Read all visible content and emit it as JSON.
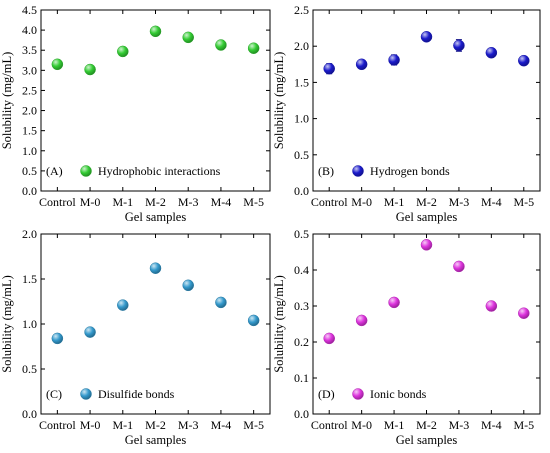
{
  "chart_data": [
    {
      "type": "scatter",
      "panel": "(A)",
      "xlabel": "Gel samples",
      "ylabel": "Solubility (mg/mL)",
      "categories": [
        "Control",
        "M-0",
        "M-1",
        "M-2",
        "M-3",
        "M-4",
        "M-5"
      ],
      "ylim": [
        0,
        4.5
      ],
      "yticks": [
        "0.0",
        "0.5",
        "1.0",
        "1.5",
        "2.0",
        "2.5",
        "3.0",
        "3.5",
        "4.0",
        "4.5"
      ],
      "legend_placement": "bottom-left",
      "series": [
        {
          "name": "Hydrophobic interactions",
          "color": "#33cc33",
          "values": [
            3.15,
            3.02,
            3.47,
            3.97,
            3.82,
            3.63,
            3.55
          ],
          "errors": [
            0.04,
            0.05,
            0.05,
            0.05,
            0.04,
            0.04,
            0.04
          ]
        }
      ]
    },
    {
      "type": "scatter",
      "panel": "(B)",
      "xlabel": "Gel samples",
      "ylabel": "Solubility (mg/mL)",
      "categories": [
        "Control",
        "M-0",
        "M-1",
        "M-2",
        "M-3",
        "M-4",
        "M-5"
      ],
      "ylim": [
        0,
        2.5
      ],
      "yticks": [
        "0.0",
        "0.5",
        "1.0",
        "1.5",
        "2.0",
        "2.5"
      ],
      "legend_placement": "bottom-left",
      "series": [
        {
          "name": "Hydrogen bonds",
          "color": "#1a1acc",
          "values": [
            1.69,
            1.75,
            1.81,
            2.13,
            2.01,
            1.91,
            1.8
          ],
          "errors": [
            0.07,
            0.04,
            0.07,
            0.03,
            0.08,
            0.03,
            0.03
          ]
        }
      ]
    },
    {
      "type": "scatter",
      "panel": "(C)",
      "xlabel": "Gel samples",
      "ylabel": "Solubility (mg/mL)",
      "categories": [
        "Control",
        "M-0",
        "M-1",
        "M-2",
        "M-3",
        "M-4",
        "M-5"
      ],
      "ylim": [
        0,
        2.0
      ],
      "yticks": [
        "0.0",
        "0.5",
        "1.0",
        "1.5",
        "2.0"
      ],
      "legend_placement": "bottom-left",
      "series": [
        {
          "name": "Disulfide bonds",
          "color": "#3399cc",
          "values": [
            0.84,
            0.91,
            1.21,
            1.62,
            1.43,
            1.24,
            1.04
          ],
          "errors": [
            0.02,
            0.02,
            0.02,
            0.02,
            0.02,
            0.02,
            0.02
          ]
        }
      ]
    },
    {
      "type": "scatter",
      "panel": "(D)",
      "xlabel": "Gel samples",
      "ylabel": "Solubility (mg/mL)",
      "categories": [
        "Control",
        "M-0",
        "M-1",
        "M-2",
        "M-3",
        "M-4",
        "M-5"
      ],
      "ylim": [
        0,
        0.5
      ],
      "yticks": [
        "0.0",
        "0.1",
        "0.2",
        "0.3",
        "0.4",
        "0.5"
      ],
      "legend_placement": "bottom-left",
      "series": [
        {
          "name": "Ionic bonds",
          "color": "#dd33dd",
          "values": [
            0.21,
            0.26,
            0.31,
            0.47,
            0.41,
            0.3,
            0.28
          ],
          "errors": [
            0.005,
            0.005,
            0.005,
            0.01,
            0.005,
            0.005,
            0.005
          ]
        }
      ]
    }
  ]
}
